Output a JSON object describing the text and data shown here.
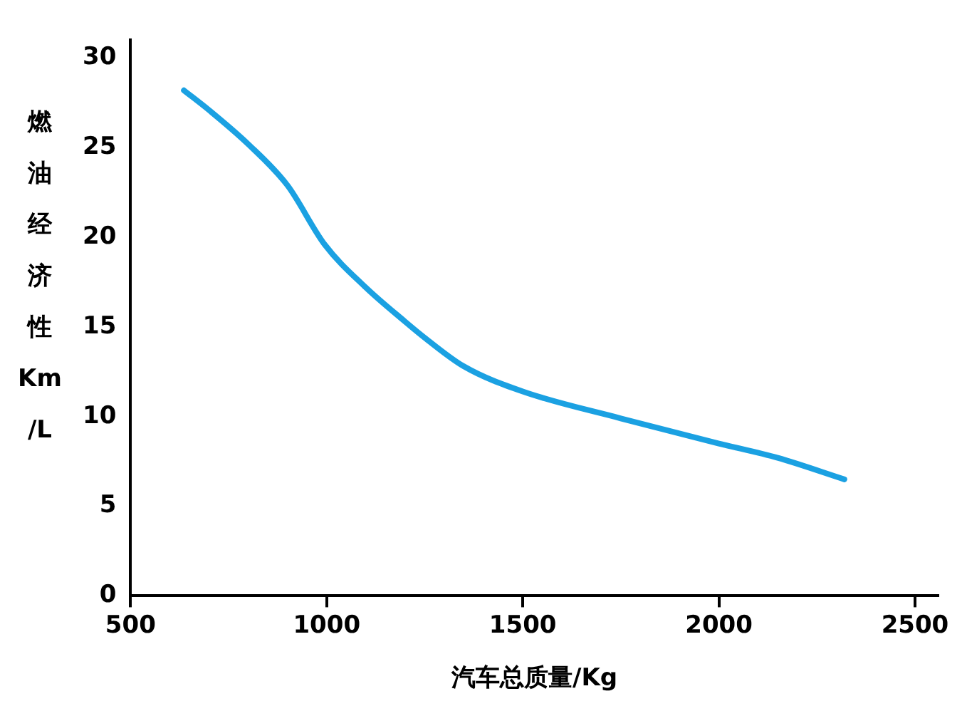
{
  "chart_data": {
    "type": "line",
    "xlabel": "汽车总质量/Kg",
    "ylabel": "燃油经济性Km/L",
    "series": [
      {
        "color": "#1ba1e2",
        "x": [
          636,
          700,
          800,
          900,
          995,
          1100,
          1200,
          1250,
          1350,
          1500,
          1750,
          2000,
          2150,
          2320
        ],
        "values": [
          28.2,
          27.1,
          25.2,
          22.9,
          19.6,
          17.2,
          15.3,
          14.4,
          12.8,
          11.4,
          9.9,
          8.5,
          7.7,
          6.5
        ]
      }
    ],
    "xlim": [
      500,
      2560
    ],
    "xticks": [
      500,
      1000,
      1500,
      2000,
      2500
    ],
    "ylim": [
      0,
      31
    ],
    "yticks": [
      0,
      5,
      10,
      15,
      20,
      25,
      30
    ],
    "grid": false,
    "legend": false,
    "marker": "none",
    "line_style": "solid"
  }
}
